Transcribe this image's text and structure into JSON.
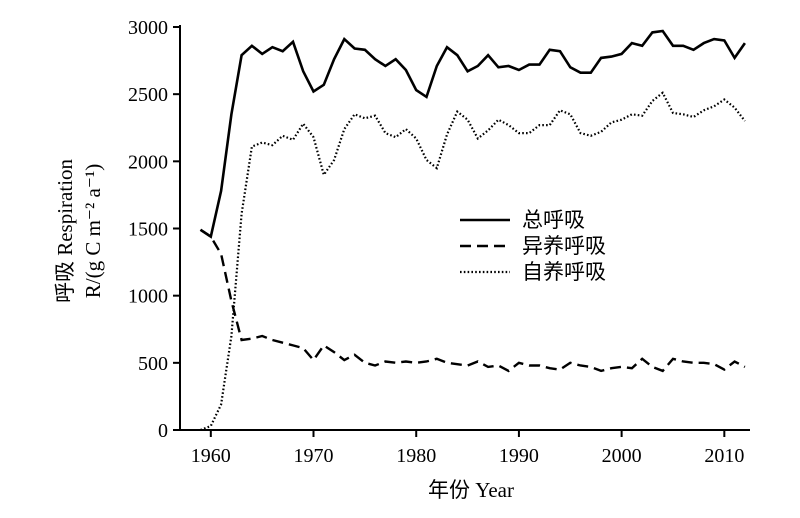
{
  "chart_data": {
    "type": "line",
    "xlabel": "年份 Year",
    "ylabel_line1": "呼吸 Respiration",
    "ylabel_line2": "R/(g C m⁻² a⁻¹)",
    "xlim": [
      1957,
      2012.5
    ],
    "ylim": [
      0,
      3000
    ],
    "xticks": [
      1960,
      1970,
      1980,
      1990,
      2000,
      2010
    ],
    "yticks": [
      0,
      500,
      1000,
      1500,
      2000,
      2500,
      3000
    ],
    "legend_position": "center-right",
    "x": [
      1959,
      1960,
      1961,
      1962,
      1963,
      1964,
      1965,
      1966,
      1967,
      1968,
      1969,
      1970,
      1971,
      1972,
      1973,
      1974,
      1975,
      1976,
      1977,
      1978,
      1979,
      1980,
      1981,
      1982,
      1983,
      1984,
      1985,
      1986,
      1987,
      1988,
      1989,
      1990,
      1991,
      1992,
      1993,
      1994,
      1995,
      1996,
      1997,
      1998,
      1999,
      2000,
      2001,
      2002,
      2003,
      2004,
      2005,
      2006,
      2007,
      2008,
      2009,
      2010,
      2011,
      2012
    ],
    "series": [
      {
        "name": "总呼吸",
        "style": "solid",
        "values": [
          1490,
          1440,
          1780,
          2350,
          2790,
          2860,
          2800,
          2850,
          2820,
          2890,
          2670,
          2520,
          2570,
          2760,
          2910,
          2840,
          2830,
          2760,
          2710,
          2760,
          2680,
          2530,
          2480,
          2710,
          2850,
          2790,
          2670,
          2710,
          2790,
          2700,
          2710,
          2680,
          2720,
          2720,
          2830,
          2820,
          2700,
          2660,
          2660,
          2770,
          2780,
          2800,
          2880,
          2860,
          2960,
          2970,
          2860,
          2860,
          2830,
          2880,
          2910,
          2900,
          2770,
          2880
        ]
      },
      {
        "name": "异养呼吸",
        "style": "dashed",
        "values": [
          1490,
          1440,
          1310,
          960,
          670,
          680,
          700,
          670,
          650,
          630,
          610,
          520,
          630,
          580,
          520,
          560,
          500,
          480,
          510,
          500,
          510,
          500,
          510,
          530,
          500,
          490,
          480,
          510,
          470,
          480,
          440,
          500,
          480,
          480,
          460,
          450,
          500,
          480,
          470,
          440,
          460,
          470,
          460,
          530,
          470,
          440,
          530,
          510,
          500,
          500,
          490,
          450,
          510,
          470
        ]
      },
      {
        "name": "自养呼吸",
        "style": "dotted",
        "values": [
          0,
          30,
          190,
          700,
          1610,
          2110,
          2140,
          2120,
          2190,
          2160,
          2280,
          2180,
          1900,
          2010,
          2240,
          2350,
          2320,
          2340,
          2210,
          2180,
          2240,
          2170,
          2010,
          1950,
          2200,
          2370,
          2310,
          2170,
          2230,
          2310,
          2270,
          2210,
          2210,
          2270,
          2270,
          2380,
          2350,
          2210,
          2190,
          2220,
          2290,
          2310,
          2350,
          2340,
          2450,
          2510,
          2360,
          2350,
          2330,
          2380,
          2410,
          2460,
          2400,
          2300
        ]
      }
    ]
  }
}
